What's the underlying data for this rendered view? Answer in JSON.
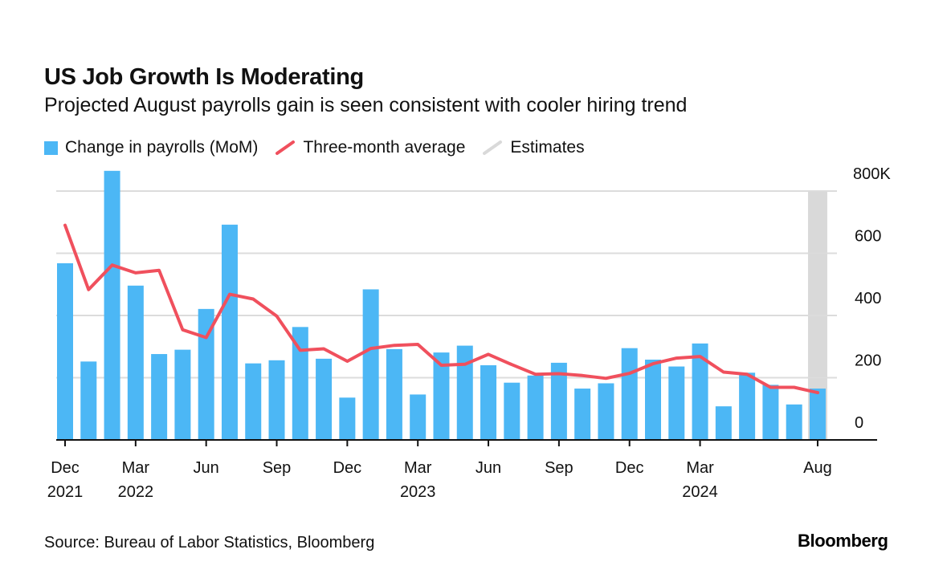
{
  "chart_data": {
    "type": "bar",
    "title": "US Job Growth Is Moderating",
    "subtitle": "Projected August payrolls gain is seen consistent with cooler hiring trend",
    "legend": [
      "Change in payrolls (MoM)",
      "Three-month average",
      "Estimates"
    ],
    "y_unit_label": "800K",
    "y_ticks": [
      0,
      200,
      400,
      600,
      800
    ],
    "y_tick_labels": [
      "0",
      "200",
      "400",
      "600",
      "800K"
    ],
    "ylim": [
      0,
      850
    ],
    "x_tick_labels": [
      {
        "index": 0,
        "month": "Dec",
        "year": "2021"
      },
      {
        "index": 3,
        "month": "Mar",
        "year": "2022"
      },
      {
        "index": 6,
        "month": "Jun",
        "year": ""
      },
      {
        "index": 9,
        "month": "Sep",
        "year": ""
      },
      {
        "index": 12,
        "month": "Dec",
        "year": ""
      },
      {
        "index": 15,
        "month": "Mar",
        "year": "2023"
      },
      {
        "index": 18,
        "month": "Jun",
        "year": ""
      },
      {
        "index": 21,
        "month": "Sep",
        "year": ""
      },
      {
        "index": 24,
        "month": "Dec",
        "year": ""
      },
      {
        "index": 27,
        "month": "Mar",
        "year": "2024"
      },
      {
        "index": 32,
        "month": "Aug",
        "year": ""
      }
    ],
    "months": [
      "2021-12",
      "2022-01",
      "2022-02",
      "2022-03",
      "2022-04",
      "2022-05",
      "2022-06",
      "2022-07",
      "2022-08",
      "2022-09",
      "2022-10",
      "2022-11",
      "2022-12",
      "2023-01",
      "2023-02",
      "2023-03",
      "2023-04",
      "2023-05",
      "2023-06",
      "2023-07",
      "2023-08",
      "2023-09",
      "2023-10",
      "2023-11",
      "2023-12",
      "2024-01",
      "2024-02",
      "2024-03",
      "2024-04",
      "2024-05",
      "2024-06",
      "2024-07",
      "2024-08"
    ],
    "series": [
      {
        "name": "Change in payrolls (MoM)",
        "type": "bar",
        "color": "#4cb7f5",
        "values": [
          568,
          252,
          865,
          496,
          276,
          290,
          421,
          692,
          246,
          256,
          363,
          261,
          136,
          484,
          292,
          146,
          281,
          303,
          240,
          184,
          207,
          248,
          165,
          182,
          295,
          258,
          236,
          310,
          108,
          216,
          177,
          114,
          165
        ]
      },
      {
        "name": "Three-month average",
        "type": "line",
        "color": "#f0505d",
        "values": [
          690,
          483,
          562,
          537,
          545,
          354,
          329,
          468,
          453,
          398,
          288,
          293,
          253,
          294,
          304,
          307,
          240,
          243,
          275,
          242,
          211,
          213,
          207,
          198,
          214,
          245,
          263,
          268,
          218,
          211,
          169,
          169,
          152
        ]
      }
    ],
    "estimates": {
      "label": "Estimates",
      "start_index": 32,
      "end_index": 32,
      "color": "#d9d9d9"
    },
    "grid": true
  },
  "footer": {
    "source": "Source: Bureau of Labor Statistics, Bloomberg",
    "brand": "Bloomberg"
  }
}
